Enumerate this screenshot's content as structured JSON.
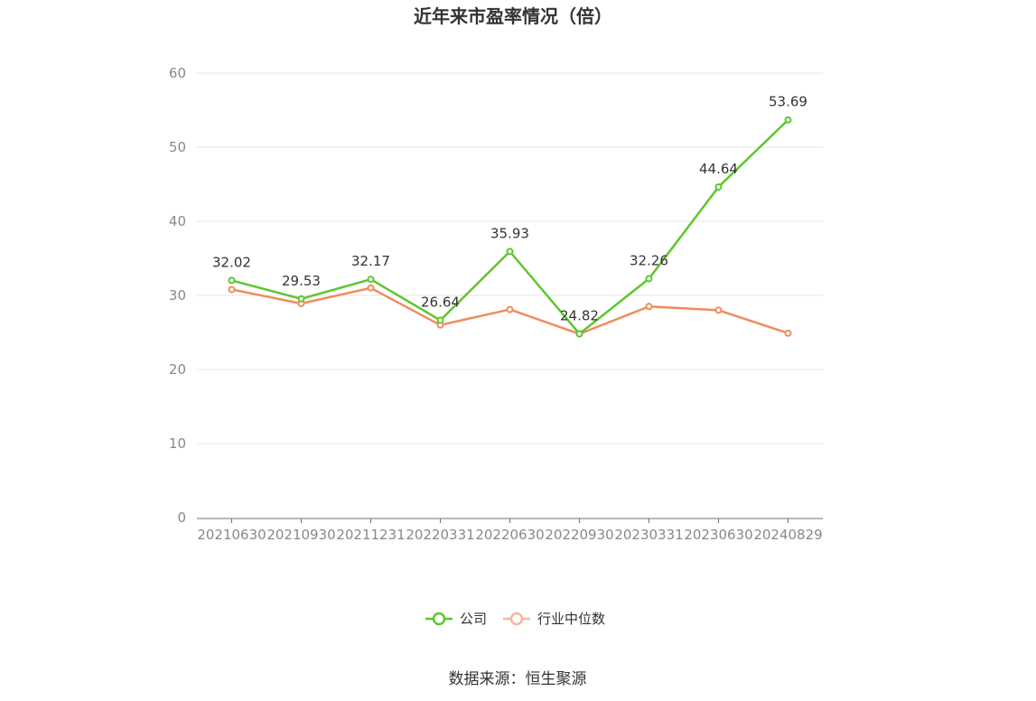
{
  "chart_data": {
    "type": "line",
    "title": "近年来市盈率情况（倍）",
    "categories": [
      "20210630",
      "20210930",
      "20211231",
      "20220331",
      "20220630",
      "20220930",
      "20230331",
      "20230630",
      "20240829"
    ],
    "ylim": [
      0,
      60
    ],
    "yticks": [
      "0",
      "10",
      "20",
      "30",
      "40",
      "50",
      "60"
    ],
    "grid": true,
    "legend_position": "bottom",
    "series": [
      {
        "name": "公司",
        "color": "#5cc72e",
        "values": [
          32.02,
          29.53,
          32.17,
          26.64,
          35.93,
          24.82,
          32.26,
          44.64,
          53.69
        ],
        "labels": [
          "32.02",
          "29.53",
          "32.17",
          "26.64",
          "35.93",
          "24.82",
          "32.26",
          "44.64",
          "53.69"
        ]
      },
      {
        "name": "行业中位数",
        "color": "#f08c5a",
        "legend_color": "#f6b6a0",
        "values": [
          30.8,
          28.9,
          31.0,
          26.0,
          28.1,
          24.8,
          28.5,
          28.0,
          24.9
        ]
      }
    ]
  },
  "source_text": "数据来源：恒生聚源"
}
